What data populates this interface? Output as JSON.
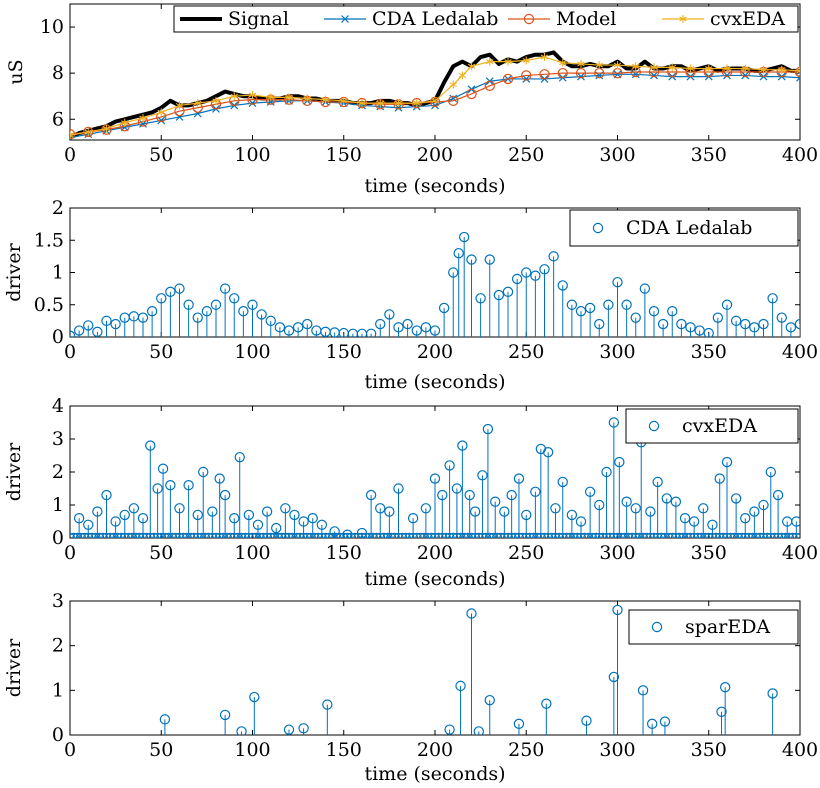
{
  "colors": {
    "signal": "#000000",
    "ledalab": "#0072BD",
    "model": "#D95319",
    "cvxeda": "#EDB120",
    "stem": "#0072BD"
  },
  "chart_data": [
    {
      "type": "line",
      "id": "signal",
      "title": "",
      "xlabel": "time (seconds)",
      "ylabel": "uS",
      "xlim": [
        0,
        400
      ],
      "ylim": [
        5.1,
        11
      ],
      "xticks": [
        0,
        50,
        100,
        150,
        200,
        250,
        300,
        350,
        400
      ],
      "yticks": [
        6,
        8,
        10
      ],
      "legend_position": "top-right",
      "series": [
        {
          "name": "Signal",
          "color": "#000000",
          "marker": "none",
          "x": [
            0,
            5,
            10,
            15,
            20,
            25,
            30,
            35,
            40,
            45,
            50,
            55,
            60,
            65,
            70,
            75,
            80,
            85,
            90,
            95,
            100,
            105,
            110,
            115,
            120,
            125,
            130,
            135,
            140,
            145,
            150,
            155,
            160,
            165,
            170,
            175,
            180,
            185,
            190,
            195,
            200,
            205,
            210,
            215,
            220,
            225,
            230,
            235,
            240,
            245,
            250,
            255,
            260,
            265,
            270,
            275,
            280,
            285,
            290,
            295,
            300,
            305,
            310,
            315,
            320,
            325,
            330,
            335,
            340,
            345,
            350,
            355,
            360,
            365,
            370,
            375,
            380,
            385,
            390,
            395,
            400
          ],
          "values": [
            5.2,
            5.4,
            5.5,
            5.6,
            5.7,
            5.9,
            6.0,
            6.1,
            6.2,
            6.3,
            6.5,
            6.8,
            6.6,
            6.6,
            6.7,
            6.8,
            7.0,
            7.2,
            7.1,
            7.0,
            7.0,
            6.9,
            6.9,
            6.9,
            7.0,
            7.0,
            6.9,
            6.9,
            6.8,
            6.8,
            6.8,
            6.7,
            6.7,
            6.7,
            6.8,
            6.8,
            6.7,
            6.7,
            6.6,
            6.7,
            6.8,
            7.6,
            8.3,
            8.5,
            8.3,
            8.7,
            8.8,
            8.4,
            8.6,
            8.5,
            8.7,
            8.8,
            8.8,
            8.9,
            8.5,
            8.3,
            8.3,
            8.4,
            8.3,
            8.3,
            8.5,
            8.2,
            8.2,
            8.5,
            8.2,
            8.2,
            8.3,
            8.3,
            8.1,
            8.2,
            8.3,
            8.1,
            8.2,
            8.2,
            8.2,
            8.1,
            8.1,
            8.2,
            8.3,
            8.1,
            8.1
          ]
        },
        {
          "name": "CDA Ledalab",
          "color": "#0072BD",
          "marker": "x",
          "x": [
            0,
            10,
            20,
            30,
            40,
            50,
            60,
            70,
            80,
            90,
            100,
            110,
            120,
            130,
            140,
            150,
            160,
            170,
            180,
            190,
            200,
            210,
            220,
            230,
            240,
            250,
            260,
            270,
            280,
            290,
            300,
            310,
            320,
            330,
            340,
            350,
            360,
            370,
            380,
            390,
            400
          ],
          "values": [
            5.2,
            5.35,
            5.5,
            5.65,
            5.8,
            5.95,
            6.1,
            6.25,
            6.45,
            6.6,
            6.7,
            6.75,
            6.8,
            6.8,
            6.75,
            6.7,
            6.6,
            6.55,
            6.5,
            6.55,
            6.6,
            6.9,
            7.3,
            7.65,
            7.75,
            7.75,
            7.75,
            7.8,
            7.85,
            7.9,
            7.95,
            7.95,
            7.9,
            7.85,
            7.85,
            7.85,
            7.9,
            7.9,
            7.85,
            7.85,
            7.8
          ]
        },
        {
          "name": "Model",
          "color": "#D95319",
          "marker": "o",
          "x": [
            0,
            10,
            20,
            30,
            40,
            50,
            60,
            70,
            80,
            90,
            100,
            110,
            120,
            130,
            140,
            150,
            160,
            170,
            180,
            190,
            200,
            210,
            220,
            230,
            240,
            250,
            260,
            270,
            280,
            290,
            300,
            310,
            320,
            330,
            340,
            350,
            360,
            370,
            380,
            390,
            400
          ],
          "values": [
            5.35,
            5.45,
            5.55,
            5.7,
            5.9,
            6.1,
            6.35,
            6.5,
            6.65,
            6.8,
            6.85,
            6.85,
            6.85,
            6.8,
            6.75,
            6.75,
            6.7,
            6.65,
            6.65,
            6.7,
            6.75,
            6.8,
            7.1,
            7.45,
            7.75,
            7.9,
            7.95,
            8.0,
            8.0,
            8.0,
            8.0,
            8.05,
            8.05,
            8.05,
            8.05,
            8.05,
            8.05,
            8.05,
            8.05,
            8.05,
            8.05
          ]
        },
        {
          "name": "cvxEDA",
          "color": "#EDB120",
          "marker": "*",
          "x": [
            0,
            10,
            20,
            30,
            40,
            50,
            60,
            70,
            80,
            90,
            100,
            110,
            120,
            130,
            140,
            150,
            160,
            170,
            180,
            190,
            200,
            210,
            215,
            220,
            230,
            240,
            250,
            260,
            270,
            280,
            290,
            300,
            310,
            320,
            330,
            340,
            350,
            360,
            370,
            380,
            390,
            400
          ],
          "values": [
            5.3,
            5.45,
            5.6,
            5.85,
            6.05,
            6.3,
            6.6,
            6.7,
            6.8,
            7.0,
            7.05,
            6.95,
            6.95,
            6.9,
            6.85,
            6.8,
            6.7,
            6.7,
            6.7,
            6.7,
            6.8,
            7.5,
            7.9,
            8.3,
            8.5,
            8.5,
            8.55,
            8.7,
            8.45,
            8.4,
            8.35,
            8.35,
            8.3,
            8.25,
            8.25,
            8.2,
            8.2,
            8.2,
            8.2,
            8.15,
            8.15,
            8.1
          ]
        }
      ]
    },
    {
      "type": "stem",
      "id": "ledalab",
      "xlabel": "time (seconds)",
      "ylabel": "driver",
      "xlim": [
        0,
        400
      ],
      "ylim": [
        0,
        2
      ],
      "xticks": [
        0,
        50,
        100,
        150,
        200,
        250,
        300,
        350,
        400
      ],
      "yticks": [
        0,
        0.5,
        1,
        1.5,
        2
      ],
      "legend_position": "top-right",
      "legend": "CDA Ledalab",
      "series": [
        {
          "name": "CDA Ledalab",
          "marker": "o",
          "x": [
            0,
            5,
            10,
            15,
            20,
            25,
            30,
            35,
            40,
            45,
            50,
            55,
            60,
            65,
            70,
            75,
            80,
            85,
            90,
            95,
            100,
            105,
            110,
            115,
            120,
            125,
            130,
            135,
            140,
            145,
            150,
            155,
            160,
            165,
            170,
            175,
            180,
            185,
            190,
            195,
            200,
            205,
            210,
            213,
            216,
            220,
            225,
            230,
            235,
            240,
            245,
            250,
            255,
            260,
            265,
            270,
            275,
            280,
            285,
            290,
            295,
            300,
            305,
            310,
            315,
            320,
            325,
            330,
            335,
            340,
            345,
            350,
            355,
            360,
            365,
            370,
            375,
            380,
            385,
            390,
            395,
            400
          ],
          "values": [
            0.02,
            0.1,
            0.18,
            0.08,
            0.25,
            0.2,
            0.3,
            0.32,
            0.3,
            0.4,
            0.6,
            0.7,
            0.75,
            0.5,
            0.3,
            0.4,
            0.5,
            0.75,
            0.6,
            0.4,
            0.5,
            0.35,
            0.25,
            0.15,
            0.1,
            0.15,
            0.2,
            0.1,
            0.08,
            0.07,
            0.06,
            0.05,
            0.05,
            0.05,
            0.2,
            0.35,
            0.15,
            0.2,
            0.1,
            0.15,
            0.1,
            0.45,
            1.0,
            1.3,
            1.55,
            1.2,
            0.6,
            1.2,
            0.65,
            0.7,
            0.9,
            1.0,
            0.95,
            1.05,
            1.25,
            0.8,
            0.5,
            0.4,
            0.45,
            0.2,
            0.5,
            0.85,
            0.5,
            0.3,
            0.75,
            0.4,
            0.2,
            0.4,
            0.2,
            0.15,
            0.1,
            0.06,
            0.3,
            0.5,
            0.25,
            0.2,
            0.15,
            0.2,
            0.6,
            0.3,
            0.15,
            0.2
          ]
        }
      ]
    },
    {
      "type": "stem",
      "id": "cvxeda",
      "xlabel": "time (seconds)",
      "ylabel": "driver",
      "xlim": [
        0,
        400
      ],
      "ylim": [
        0,
        4
      ],
      "xticks": [
        0,
        50,
        100,
        150,
        200,
        250,
        300,
        350,
        400
      ],
      "yticks": [
        0,
        1,
        2,
        3,
        4
      ],
      "legend_position": "top-right",
      "legend": "cvxEDA",
      "series": [
        {
          "name": "cvxEDA",
          "marker": "o",
          "x": [
            5,
            10,
            15,
            20,
            25,
            30,
            35,
            40,
            44,
            48,
            51,
            55,
            60,
            65,
            70,
            73,
            78,
            82,
            85,
            90,
            93,
            98,
            103,
            108,
            113,
            118,
            123,
            128,
            133,
            138,
            145,
            152,
            160,
            165,
            170,
            175,
            180,
            188,
            195,
            200,
            204,
            208,
            212,
            215,
            219,
            222,
            226,
            229,
            233,
            238,
            242,
            246,
            250,
            255,
            258,
            262,
            266,
            270,
            275,
            280,
            285,
            290,
            294,
            298,
            301,
            305,
            310,
            313,
            318,
            322,
            327,
            332,
            337,
            342,
            347,
            352,
            356,
            360,
            365,
            370,
            375,
            380,
            384,
            388,
            393,
            398
          ],
          "values": [
            0.6,
            0.4,
            0.8,
            1.3,
            0.5,
            0.7,
            0.9,
            0.6,
            2.8,
            1.5,
            2.1,
            1.6,
            0.9,
            1.6,
            0.7,
            2.0,
            0.8,
            1.8,
            1.3,
            0.6,
            2.45,
            0.7,
            0.4,
            0.8,
            0.3,
            0.9,
            0.7,
            0.5,
            0.6,
            0.4,
            0.2,
            0.1,
            0.15,
            1.3,
            0.9,
            0.8,
            1.5,
            0.6,
            0.9,
            1.8,
            1.3,
            2.2,
            1.5,
            2.8,
            1.3,
            0.8,
            1.9,
            3.3,
            1.1,
            0.8,
            1.3,
            1.8,
            0.7,
            1.4,
            2.7,
            2.6,
            0.9,
            1.7,
            0.7,
            0.5,
            1.4,
            1.0,
            2.0,
            3.5,
            2.3,
            1.1,
            0.9,
            2.9,
            0.8,
            1.7,
            1.2,
            1.1,
            0.6,
            0.5,
            0.9,
            0.4,
            1.8,
            2.3,
            1.2,
            0.6,
            0.8,
            1.0,
            2.0,
            1.3,
            0.5,
            0.5
          ]
        }
      ]
    },
    {
      "type": "stem",
      "id": "spareda",
      "xlabel": "time (seconds)",
      "ylabel": "driver",
      "xlim": [
        0,
        400
      ],
      "ylim": [
        0,
        3
      ],
      "xticks": [
        0,
        50,
        100,
        150,
        200,
        250,
        300,
        350,
        400
      ],
      "yticks": [
        0,
        1,
        2,
        3
      ],
      "legend_position": "top-right",
      "legend": "sparEDA",
      "series": [
        {
          "name": "sparEDA",
          "marker": "o",
          "x": [
            52,
            85,
            94,
            101,
            120,
            128,
            141,
            208,
            214,
            220,
            224,
            230,
            246,
            261,
            283,
            298,
            300,
            314,
            319,
            326,
            357,
            359,
            385
          ],
          "values": [
            0.35,
            0.45,
            0.08,
            0.85,
            0.12,
            0.15,
            0.68,
            0.12,
            1.1,
            2.72,
            0.08,
            0.78,
            0.25,
            0.7,
            0.32,
            1.3,
            2.8,
            1.0,
            0.25,
            0.3,
            0.52,
            1.07,
            0.93
          ]
        }
      ]
    }
  ]
}
